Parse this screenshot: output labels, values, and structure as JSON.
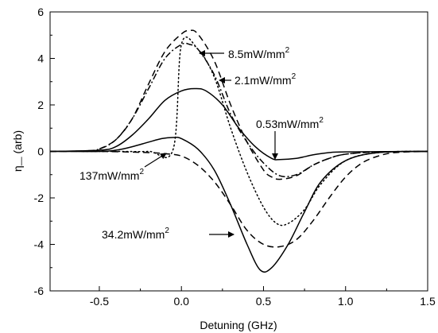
{
  "chart_data": {
    "type": "line",
    "title": "",
    "xlabel": "Detuning (GHz)",
    "ylabel_main": "η",
    "ylabel_sub": "—",
    "ylabel_unit": "(arb)",
    "xlim": [
      -0.8,
      1.5
    ],
    "ylim": [
      -6,
      6
    ],
    "grid": false,
    "legend": "none",
    "x_ticks": [
      -0.5,
      0.0,
      0.5,
      1.0,
      1.5
    ],
    "x_tick_labels": [
      "-0.5",
      "0.0",
      "0.5",
      "1.0",
      "1.5"
    ],
    "y_ticks": [
      -6,
      -4,
      -2,
      0,
      2,
      4,
      6
    ],
    "y_tick_labels": [
      "-6",
      "-4",
      "-2",
      "0",
      "2",
      "4",
      "6"
    ],
    "series": [
      {
        "style": "dash-dot",
        "points": [
          [
            -0.8,
            0
          ],
          [
            -0.6,
            0.02
          ],
          [
            -0.5,
            0.1
          ],
          [
            -0.4,
            0.5
          ],
          [
            -0.3,
            1.4
          ],
          [
            -0.2,
            2.7
          ],
          [
            -0.1,
            4.0
          ],
          [
            0,
            4.6
          ],
          [
            0.05,
            4.6
          ],
          [
            0.1,
            4.4
          ],
          [
            0.2,
            3.3
          ],
          [
            0.3,
            1.6
          ],
          [
            0.4,
            0.4
          ],
          [
            0.5,
            -0.5
          ],
          [
            0.6,
            -1.05
          ],
          [
            0.7,
            -1.0
          ],
          [
            0.8,
            -0.6
          ],
          [
            0.9,
            -0.3
          ],
          [
            1.0,
            -0.12
          ],
          [
            1.2,
            -0.02
          ],
          [
            1.5,
            0
          ]
        ]
      },
      {
        "style": "dashed",
        "points": [
          [
            -0.5,
            0.1
          ],
          [
            -0.4,
            0.5
          ],
          [
            -0.3,
            1.4
          ],
          [
            -0.2,
            2.9
          ],
          [
            -0.1,
            4.3
          ],
          [
            0,
            5.05
          ],
          [
            0.05,
            5.2
          ],
          [
            0.1,
            5.05
          ],
          [
            0.2,
            3.9
          ],
          [
            0.3,
            2.0
          ],
          [
            0.4,
            0.4
          ],
          [
            0.5,
            -0.8
          ],
          [
            0.55,
            -1.1
          ],
          [
            0.6,
            -1.2
          ],
          [
            0.7,
            -1.05
          ],
          [
            0.8,
            -0.6
          ],
          [
            0.9,
            -0.3
          ],
          [
            1.0,
            -0.12
          ],
          [
            1.2,
            -0.02
          ],
          [
            1.5,
            0
          ]
        ]
      },
      {
        "style": "dotted",
        "points": [
          [
            -0.6,
            0
          ],
          [
            -0.4,
            0
          ],
          [
            -0.2,
            0
          ],
          [
            -0.05,
            0.1
          ],
          [
            0,
            4.6
          ],
          [
            0.1,
            4.4
          ],
          [
            0.2,
            3.2
          ],
          [
            0.3,
            1.0
          ],
          [
            0.4,
            -0.9
          ],
          [
            0.5,
            -2.4
          ],
          [
            0.58,
            -3.1
          ],
          [
            0.65,
            -3.1
          ],
          [
            0.75,
            -2.5
          ],
          [
            0.85,
            -1.4
          ],
          [
            1.0,
            -0.4
          ],
          [
            1.2,
            -0.05
          ],
          [
            1.5,
            0
          ]
        ]
      },
      {
        "style": "solid",
        "points": [
          [
            -0.8,
            0
          ],
          [
            -0.5,
            0.05
          ],
          [
            -0.4,
            0.2
          ],
          [
            -0.3,
            0.7
          ],
          [
            -0.2,
            1.4
          ],
          [
            -0.1,
            2.2
          ],
          [
            0,
            2.6
          ],
          [
            0.08,
            2.7
          ],
          [
            0.15,
            2.6
          ],
          [
            0.25,
            2.0
          ],
          [
            0.35,
            1.0
          ],
          [
            0.45,
            0.2
          ],
          [
            0.55,
            -0.3
          ],
          [
            0.6,
            -0.35
          ],
          [
            0.7,
            -0.3
          ],
          [
            0.8,
            -0.15
          ],
          [
            0.9,
            -0.05
          ],
          [
            1.0,
            -0.02
          ],
          [
            1.5,
            0
          ]
        ]
      },
      {
        "style": "solid",
        "points": [
          [
            -0.8,
            0
          ],
          [
            -0.5,
            0
          ],
          [
            -0.4,
            0.05
          ],
          [
            -0.3,
            0.2
          ],
          [
            -0.2,
            0.4
          ],
          [
            -0.12,
            0.55
          ],
          [
            -0.05,
            0.6
          ],
          [
            0,
            0.55
          ],
          [
            0.1,
            0.1
          ],
          [
            0.2,
            -0.8
          ],
          [
            0.3,
            -2.3
          ],
          [
            0.4,
            -4.0
          ],
          [
            0.48,
            -5.1
          ],
          [
            0.55,
            -5.0
          ],
          [
            0.65,
            -4.0
          ],
          [
            0.75,
            -2.6
          ],
          [
            0.85,
            -1.3
          ],
          [
            1.0,
            -0.4
          ],
          [
            1.2,
            -0.05
          ],
          [
            1.5,
            0
          ]
        ]
      },
      {
        "style": "dashed",
        "points": [
          [
            -0.8,
            0
          ],
          [
            -0.5,
            0
          ],
          [
            -0.2,
            -0.05
          ],
          [
            -0.1,
            -0.1
          ],
          [
            0,
            -0.2
          ],
          [
            0.1,
            -0.6
          ],
          [
            0.2,
            -1.3
          ],
          [
            0.3,
            -2.3
          ],
          [
            0.4,
            -3.4
          ],
          [
            0.5,
            -4.0
          ],
          [
            0.6,
            -4.1
          ],
          [
            0.7,
            -3.8
          ],
          [
            0.8,
            -3.0
          ],
          [
            0.9,
            -2.0
          ],
          [
            1.0,
            -1.1
          ],
          [
            1.1,
            -0.5
          ],
          [
            1.2,
            -0.2
          ],
          [
            1.3,
            -0.05
          ],
          [
            1.5,
            0
          ]
        ]
      }
    ],
    "annotations": [
      {
        "text": "8.5mW/mm",
        "sup": "2"
      },
      {
        "text": "2.1mW/mm",
        "sup": "2"
      },
      {
        "text": "0.53mW/mm",
        "sup": "2"
      },
      {
        "text": "137mW/mm",
        "sup": "2"
      },
      {
        "text": "34.2mW/mm",
        "sup": "2"
      }
    ]
  }
}
